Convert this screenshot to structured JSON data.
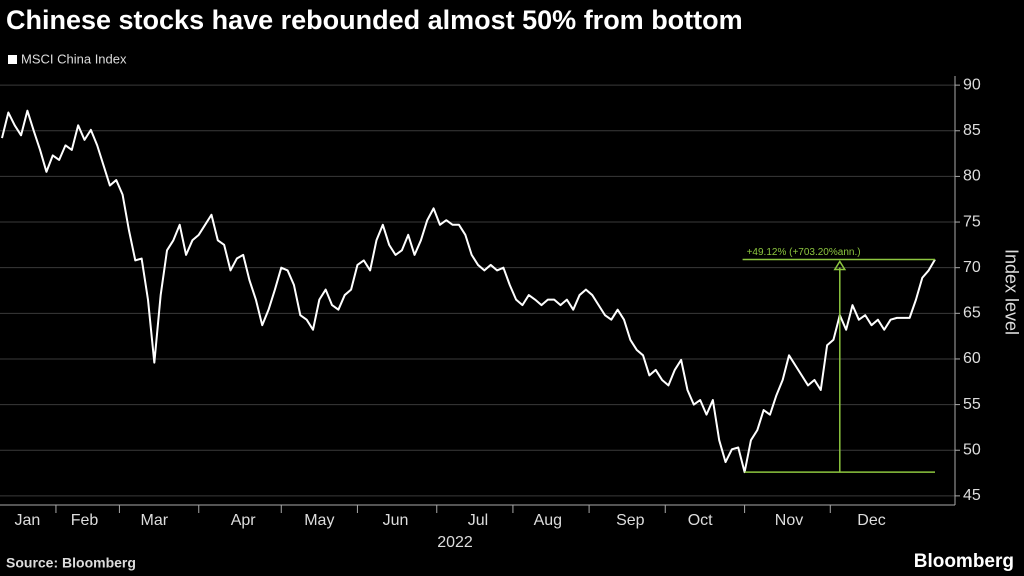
{
  "chart_data": {
    "type": "line",
    "title": "Chinese stocks have rebounded almost 50% from bottom",
    "ylabel": "Index level",
    "xlabel": "2022",
    "source": "Source: Bloomberg",
    "brand": "Bloomberg",
    "annotation": "+49.12% (+703.20%ann.)",
    "annotation_color": "#8dc63f",
    "grid": true,
    "ylim": [
      44,
      91
    ],
    "yticks": [
      45,
      50,
      55,
      60,
      65,
      70,
      75,
      80,
      85,
      90
    ],
    "categories": [
      null,
      null,
      null,
      null,
      "Jan",
      null,
      null,
      null,
      null,
      null,
      null,
      null,
      null,
      "Feb",
      null,
      null,
      null,
      null,
      null,
      null,
      null,
      null,
      null,
      null,
      "Mar",
      null,
      null,
      null,
      null,
      null,
      null,
      null,
      null,
      null,
      null,
      null,
      null,
      null,
      "Apr",
      null,
      null,
      null,
      null,
      null,
      null,
      null,
      null,
      null,
      null,
      null,
      "May",
      null,
      null,
      null,
      null,
      null,
      null,
      null,
      null,
      null,
      null,
      null,
      "Jun",
      null,
      null,
      null,
      null,
      null,
      null,
      null,
      null,
      null,
      null,
      null,
      null,
      "Jul",
      null,
      null,
      null,
      null,
      null,
      null,
      null,
      null,
      null,
      null,
      "Aug",
      null,
      null,
      null,
      null,
      null,
      null,
      null,
      null,
      null,
      null,
      null,
      null,
      "Sep",
      null,
      null,
      null,
      null,
      null,
      null,
      null,
      null,
      null,
      null,
      "Oct",
      null,
      null,
      null,
      null,
      null,
      null,
      null,
      null,
      null,
      null,
      null,
      null,
      null,
      "Nov",
      null,
      null,
      null,
      null,
      null,
      null,
      null,
      null,
      null,
      null,
      null,
      null,
      "Dec",
      null,
      null,
      null,
      null,
      null,
      null,
      null,
      null,
      null,
      null
    ],
    "series": [
      {
        "name": "MSCI China Index",
        "color": "#ffffff",
        "values": [
          84.2,
          87,
          85.6,
          84.5,
          87.2,
          85,
          82.9,
          80.5,
          82.3,
          81.8,
          83.4,
          82.9,
          85.6,
          84,
          85.1,
          83.4,
          81.2,
          79,
          79.6,
          78,
          74.1,
          70.8,
          71,
          66.5,
          59.6,
          67,
          71.9,
          73,
          74.7,
          71.4,
          73,
          73.6,
          74.7,
          75.8,
          73,
          72.5,
          69.7,
          71,
          71.4,
          68.6,
          66.5,
          63.7,
          65.4,
          67.6,
          70,
          69.7,
          68.1,
          64.8,
          64.3,
          63.2,
          66.5,
          67.6,
          65.9,
          65.4,
          67,
          67.6,
          70.3,
          70.8,
          69.7,
          73,
          74.7,
          72.5,
          71.4,
          71.9,
          73.6,
          71.4,
          73,
          75.2,
          76.5,
          74.7,
          75.2,
          74.7,
          74.7,
          73.6,
          71.4,
          70.3,
          69.7,
          70.3,
          69.7,
          70,
          68.1,
          66.5,
          65.9,
          67,
          66.5,
          65.9,
          66.5,
          66.5,
          65.9,
          66.5,
          65.4,
          67,
          67.6,
          67,
          65.9,
          64.8,
          64.3,
          65.4,
          64.3,
          62.1,
          61,
          60.4,
          58.2,
          58.8,
          57.7,
          57.1,
          58.8,
          59.9,
          56.6,
          55,
          55.5,
          53.9,
          55.5,
          51.1,
          48.7,
          50.1,
          50.3,
          47.6,
          51.1,
          52.2,
          54.4,
          53.9,
          56,
          57.7,
          60.4,
          59.3,
          58.2,
          57.1,
          57.7,
          56.6,
          61.5,
          62.1,
          64.8,
          63.2,
          65.9,
          64.3,
          64.8,
          63.7,
          64.3,
          63.2,
          64.3,
          64.5,
          64.5,
          64.5,
          66.5,
          68.9,
          69.7,
          70.9
        ]
      }
    ]
  }
}
